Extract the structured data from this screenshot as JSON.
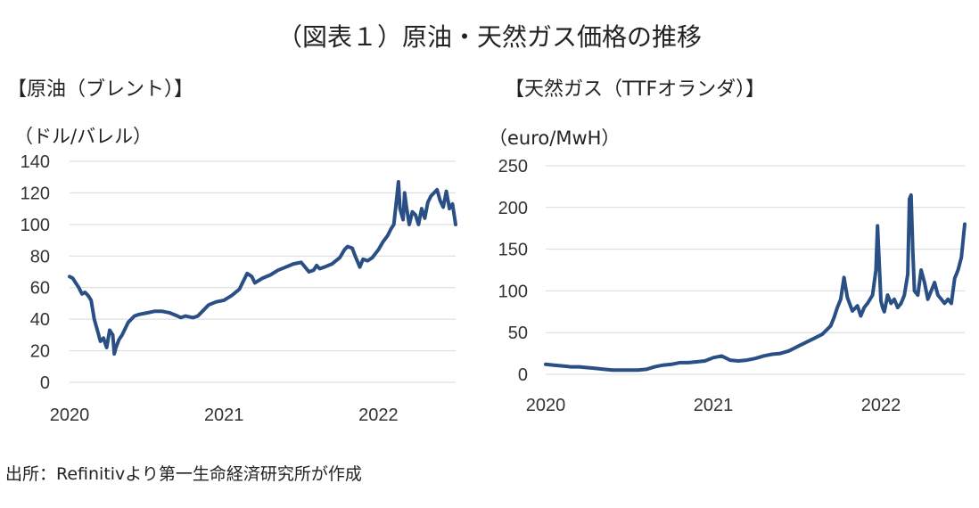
{
  "figure": {
    "title": "（図表１）原油・天然ガス価格の推移",
    "source": "出所：Refinitivより第一生命経済研究所が作成"
  },
  "colors": {
    "series": "#2a4f85",
    "grid": "#d9d9d9"
  },
  "chart_data": [
    {
      "type": "line",
      "title": "【原油（ブレント）】",
      "ylabel": "（ドル/バレル）",
      "xlabel": "",
      "x_ticks": [
        "2020",
        "2021",
        "2022"
      ],
      "y_ticks": [
        "0",
        "20",
        "40",
        "60",
        "80",
        "100",
        "120",
        "140"
      ],
      "ylim": [
        0,
        140
      ],
      "xlim": [
        2020.0,
        2022.5
      ],
      "grid": true,
      "series": [
        {
          "name": "Brent",
          "x": [
            2020.0,
            2020.02,
            2020.04,
            2020.06,
            2020.08,
            2020.1,
            2020.12,
            2020.14,
            2020.16,
            2020.18,
            2020.2,
            2020.22,
            2020.24,
            2020.26,
            2020.28,
            2020.29,
            2020.3,
            2020.32,
            2020.34,
            2020.36,
            2020.38,
            2020.4,
            2020.42,
            2020.45,
            2020.5,
            2020.55,
            2020.6,
            2020.65,
            2020.7,
            2020.72,
            2020.75,
            2020.8,
            2020.83,
            2020.86,
            2020.9,
            2020.95,
            2021.0,
            2021.05,
            2021.1,
            2021.13,
            2021.15,
            2021.18,
            2021.2,
            2021.25,
            2021.3,
            2021.35,
            2021.4,
            2021.45,
            2021.5,
            2021.55,
            2021.58,
            2021.6,
            2021.62,
            2021.65,
            2021.7,
            2021.75,
            2021.78,
            2021.8,
            2021.83,
            2021.85,
            2021.88,
            2021.9,
            2021.93,
            2021.96,
            2022.0,
            2022.03,
            2022.06,
            2022.08,
            2022.1,
            2022.12,
            2022.13,
            2022.14,
            2022.16,
            2022.17,
            2022.18,
            2022.2,
            2022.22,
            2022.24,
            2022.26,
            2022.28,
            2022.3,
            2022.32,
            2022.34,
            2022.36,
            2022.38,
            2022.4,
            2022.42,
            2022.44,
            2022.46,
            2022.48,
            2022.5
          ],
          "values": [
            67,
            66,
            63,
            60,
            56,
            57,
            55,
            52,
            40,
            33,
            26,
            28,
            22,
            33,
            30,
            18,
            22,
            27,
            30,
            34,
            38,
            40,
            42,
            43,
            44,
            45,
            45,
            44,
            42,
            41,
            42,
            41,
            42,
            45,
            49,
            51,
            52,
            55,
            59,
            65,
            69,
            67,
            63,
            66,
            68,
            71,
            73,
            75,
            76,
            70,
            71,
            74,
            72,
            73,
            75,
            79,
            84,
            86,
            85,
            80,
            73,
            78,
            77,
            79,
            84,
            89,
            93,
            97,
            100,
            118,
            127,
            110,
            103,
            120,
            112,
            100,
            108,
            106,
            100,
            110,
            104,
            114,
            118,
            120,
            122,
            115,
            111,
            121,
            110,
            113,
            100
          ]
        }
      ]
    },
    {
      "type": "line",
      "title": "【天然ガス（TTFオランダ）】",
      "ylabel": "（euro/MwH）",
      "xlabel": "",
      "x_ticks": [
        "2020",
        "2021",
        "2022"
      ],
      "y_ticks": [
        "0",
        "50",
        "100",
        "150",
        "200",
        "250"
      ],
      "ylim": [
        0,
        250
      ],
      "xlim": [
        2020.0,
        2022.5
      ],
      "grid": true,
      "series": [
        {
          "name": "TTF",
          "x": [
            2020.0,
            2020.05,
            2020.1,
            2020.15,
            2020.2,
            2020.25,
            2020.3,
            2020.35,
            2020.4,
            2020.45,
            2020.5,
            2020.55,
            2020.6,
            2020.65,
            2020.7,
            2020.75,
            2020.8,
            2020.85,
            2020.9,
            2020.95,
            2021.0,
            2021.05,
            2021.1,
            2021.15,
            2021.2,
            2021.25,
            2021.3,
            2021.35,
            2021.4,
            2021.45,
            2021.5,
            2021.55,
            2021.6,
            2021.65,
            2021.7,
            2021.72,
            2021.74,
            2021.76,
            2021.78,
            2021.8,
            2021.83,
            2021.86,
            2021.88,
            2021.9,
            2021.92,
            2021.95,
            2021.97,
            2021.98,
            2022.0,
            2022.01,
            2022.02,
            2022.04,
            2022.06,
            2022.08,
            2022.1,
            2022.12,
            2022.14,
            2022.16,
            2022.17,
            2022.18,
            2022.19,
            2022.2,
            2022.22,
            2022.24,
            2022.26,
            2022.28,
            2022.3,
            2022.32,
            2022.34,
            2022.36,
            2022.38,
            2022.4,
            2022.42,
            2022.44,
            2022.46,
            2022.48,
            2022.5
          ],
          "values": [
            12,
            11,
            10,
            9,
            9,
            8,
            7,
            6,
            5,
            5,
            5,
            5,
            6,
            9,
            11,
            12,
            14,
            14,
            15,
            16,
            20,
            22,
            17,
            16,
            17,
            19,
            22,
            24,
            25,
            28,
            33,
            38,
            43,
            48,
            58,
            68,
            80,
            90,
            116,
            92,
            76,
            82,
            70,
            80,
            85,
            95,
            125,
            178,
            88,
            80,
            75,
            95,
            85,
            90,
            80,
            85,
            95,
            120,
            210,
            215,
            150,
            100,
            95,
            125,
            110,
            90,
            100,
            110,
            95,
            90,
            85,
            90,
            85,
            115,
            125,
            140,
            180
          ]
        }
      ]
    }
  ]
}
